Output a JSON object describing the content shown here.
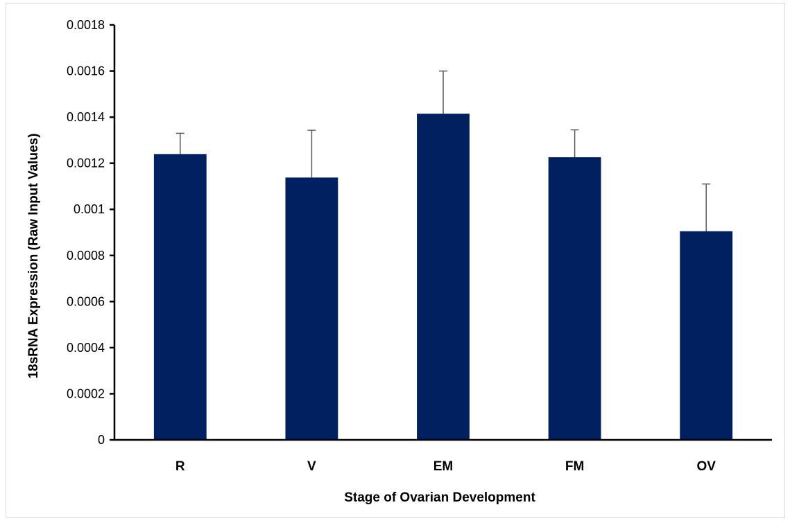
{
  "chart_data": {
    "type": "bar",
    "title": "",
    "xlabel": "Stage of Ovarian Development",
    "ylabel": "18sRNA Expression (Raw Input Values)",
    "categories": [
      "R",
      "V",
      "EM",
      "FM",
      "OV"
    ],
    "values": [
      0.00124,
      0.001138,
      0.001415,
      0.001226,
      0.000905
    ],
    "error_bars": [
      9e-05,
      0.000205,
      0.000185,
      0.000119,
      0.000205
    ],
    "y_ticks": [
      "0",
      "0.0002",
      "0.0004",
      "0.0006",
      "0.0008",
      "0.001",
      "0.0012",
      "0.0014",
      "0.0016",
      "0.0018"
    ],
    "ylim": [
      0,
      0.0018
    ],
    "bar_color": "#002060",
    "error_bar_color": "#595959",
    "grid": false,
    "legend": "none"
  }
}
